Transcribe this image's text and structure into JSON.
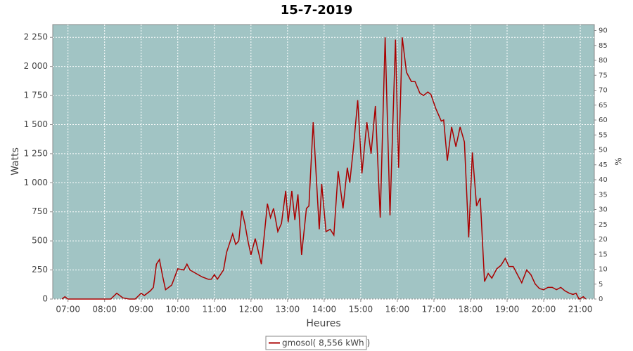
{
  "chart_data": {
    "type": "line",
    "title": "15-7-2019",
    "x_label": "Heures",
    "y_label": "Watts",
    "y2_label": "%",
    "xlim": [
      "06:35",
      "21:23"
    ],
    "xticks": [
      "07:00",
      "08:00",
      "09:00",
      "10:00",
      "11:00",
      "12:00",
      "13:00",
      "14:00",
      "15:00",
      "16:00",
      "17:00",
      "18:00",
      "19:00",
      "20:00",
      "21:00"
    ],
    "ylim": [
      0,
      2360
    ],
    "yticks": [
      0,
      250,
      500,
      750,
      {
        "value": 1000,
        "label": "1 000"
      },
      {
        "value": 1250,
        "label": "1 250"
      },
      {
        "value": 1500,
        "label": "1 500"
      },
      {
        "value": 1750,
        "label": "1 750"
      },
      {
        "value": 2000,
        "label": "2 000"
      },
      {
        "value": 2250,
        "label": "2 250"
      }
    ],
    "y2lim": [
      0,
      92
    ],
    "y2ticks": [
      0,
      5,
      10,
      15,
      20,
      25,
      30,
      35,
      40,
      45,
      50,
      55,
      60,
      65,
      70,
      75,
      80,
      85,
      90
    ],
    "grid": true,
    "legend": "bottom",
    "x": [
      "06:50",
      "06:55",
      "07:00",
      "07:05",
      "08:10",
      "08:20",
      "08:30",
      "08:40",
      "08:50",
      "09:00",
      "09:05",
      "09:15",
      "09:20",
      "09:25",
      "09:30",
      "09:35",
      "09:40",
      "09:50",
      "10:00",
      "10:10",
      "10:15",
      "10:20",
      "10:30",
      "10:40",
      "10:50",
      "10:55",
      "11:00",
      "11:05",
      "11:15",
      "11:20",
      "11:30",
      "11:35",
      "11:40",
      "11:45",
      "11:50",
      "11:55",
      "12:00",
      "12:07",
      "12:17",
      "12:27",
      "12:32",
      "12:37",
      "12:44",
      "12:50",
      "12:57",
      "13:01",
      "13:07",
      "13:12",
      "13:17",
      "13:23",
      "13:31",
      "13:35",
      "13:42",
      "13:52",
      "13:56",
      "14:03",
      "14:10",
      "14:16",
      "14:23",
      "14:31",
      "14:38",
      "14:42",
      "14:48",
      "14:55",
      "15:02",
      "15:10",
      "15:17",
      "15:24",
      "15:32",
      "15:40",
      "15:48",
      "15:57",
      "16:02",
      "16:08",
      "16:15",
      "16:23",
      "16:29",
      "16:37",
      "16:43",
      "16:50",
      "16:55",
      "17:03",
      "17:12",
      "17:16",
      "17:22",
      "17:29",
      "17:36",
      "17:43",
      "17:50",
      "17:57",
      "18:03",
      "18:10",
      "18:16",
      "18:23",
      "18:29",
      "18:35",
      "18:43",
      "18:50",
      "18:57",
      "19:03",
      "19:10",
      "19:17",
      "19:24",
      "19:32",
      "19:39",
      "19:46",
      "19:53",
      "20:00",
      "20:07",
      "20:14",
      "20:21",
      "20:28",
      "20:35",
      "20:42",
      "20:48",
      "20:53",
      "20:58",
      "21:05",
      "21:09"
    ],
    "series": [
      {
        "name": "gmosol( 8,556 kWh )",
        "color": "#aa0000",
        "values": [
          0,
          20,
          0,
          0,
          0,
          50,
          10,
          0,
          0,
          50,
          30,
          70,
          100,
          300,
          340,
          200,
          80,
          120,
          260,
          250,
          300,
          250,
          220,
          190,
          170,
          170,
          210,
          170,
          250,
          400,
          560,
          470,
          500,
          760,
          650,
          500,
          380,
          520,
          300,
          820,
          700,
          780,
          580,
          650,
          930,
          660,
          930,
          680,
          900,
          380,
          780,
          800,
          1520,
          600,
          990,
          580,
          600,
          550,
          1100,
          780,
          1130,
          1000,
          1300,
          1710,
          1080,
          1520,
          1250,
          1660,
          700,
          2250,
          720,
          2230,
          1130,
          2250,
          1950,
          1870,
          1870,
          1770,
          1750,
          1780,
          1760,
          1640,
          1530,
          1540,
          1190,
          1480,
          1310,
          1480,
          1350,
          530,
          1260,
          800,
          870,
          150,
          220,
          180,
          260,
          290,
          350,
          280,
          280,
          210,
          140,
          250,
          210,
          130,
          90,
          80,
          100,
          100,
          80,
          100,
          70,
          50,
          40,
          50,
          0,
          20,
          0
        ]
      }
    ]
  }
}
